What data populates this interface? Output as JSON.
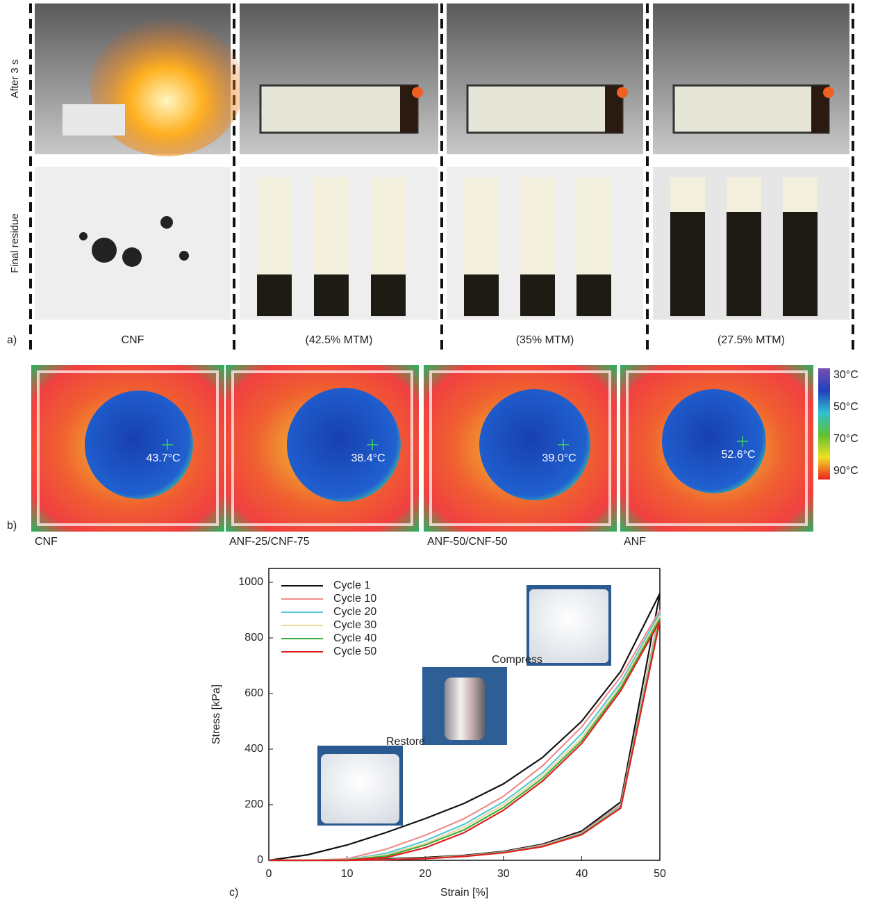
{
  "panel_a": {
    "label": "a)",
    "row_labels": [
      "After 3 s",
      "Final residue"
    ],
    "columns": [
      "CNF",
      "(42.5% MTM)",
      "(35% MTM)",
      "(27.5% MTM)"
    ]
  },
  "panel_b": {
    "label": "b)",
    "images": [
      {
        "name": "CNF",
        "temperature": "43.7°C"
      },
      {
        "name": "ANF-25/CNF-75",
        "temperature": "38.4°C"
      },
      {
        "name": "ANF-50/CNF-50",
        "temperature": "39.0°C"
      },
      {
        "name": "ANF",
        "temperature": "52.6°C"
      }
    ],
    "colorbar_labels": [
      "30°C",
      "50°C",
      "70°C",
      "90°C"
    ]
  },
  "chart_data": {
    "type": "line",
    "panel_label": "c)",
    "x_label": "Strain [%]",
    "y_label": "Stress [kPa]",
    "annotations": [
      "Compress",
      "Restore"
    ],
    "x": [
      0,
      5,
      10,
      15,
      20,
      25,
      30,
      35,
      40,
      45,
      50,
      45,
      40,
      35,
      30,
      25,
      20,
      15,
      10,
      5,
      0
    ],
    "xlim": [
      0,
      50
    ],
    "ylim": [
      0,
      1050
    ],
    "xticks": [
      0,
      10,
      20,
      30,
      40,
      50
    ],
    "yticks": [
      0,
      200,
      400,
      600,
      800,
      1000
    ],
    "series": [
      {
        "name": "Cycle 1",
        "color": "#111111",
        "values": [
          0,
          20,
          55,
          100,
          150,
          205,
          275,
          370,
          500,
          680,
          960,
          210,
          105,
          58,
          32,
          18,
          10,
          5,
          2,
          0,
          0
        ]
      },
      {
        "name": "Cycle 10",
        "color": "#f08c8c",
        "values": [
          0,
          0,
          5,
          40,
          90,
          150,
          230,
          340,
          480,
          660,
          900,
          200,
          100,
          55,
          30,
          16,
          8,
          3,
          0,
          0,
          0
        ]
      },
      {
        "name": "Cycle 20",
        "color": "#55c8d8",
        "values": [
          0,
          0,
          2,
          25,
          70,
          130,
          210,
          315,
          455,
          640,
          890,
          195,
          97,
          52,
          29,
          15,
          7,
          3,
          0,
          0,
          0
        ]
      },
      {
        "name": "Cycle 30",
        "color": "#eed89a",
        "values": [
          0,
          0,
          1,
          20,
          60,
          120,
          200,
          305,
          440,
          630,
          880,
          192,
          95,
          51,
          28,
          15,
          7,
          2,
          0,
          0,
          0
        ]
      },
      {
        "name": "Cycle 40",
        "color": "#3cae3c",
        "values": [
          0,
          0,
          1,
          15,
          55,
          110,
          190,
          295,
          430,
          620,
          870,
          190,
          94,
          50,
          28,
          14,
          7,
          2,
          0,
          0,
          0
        ]
      },
      {
        "name": "Cycle 50",
        "color": "#e02020",
        "values": [
          0,
          0,
          0,
          10,
          45,
          100,
          180,
          285,
          420,
          610,
          860,
          188,
          92,
          49,
          27,
          14,
          6,
          2,
          0,
          0,
          0
        ]
      }
    ]
  }
}
